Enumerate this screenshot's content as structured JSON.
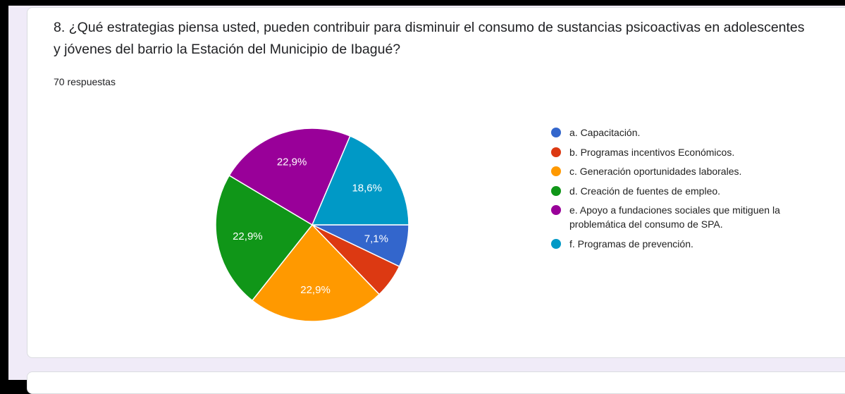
{
  "chart_data": {
    "type": "pie",
    "title": "8. ¿Qué estrategias piensa usted, pueden contribuir para disminuir el consumo de sustancias psicoactivas en adolescentes y jóvenes del barrio la Estación del Municipio de Ibagué?",
    "subtitle": "70 respuestas",
    "categories": [
      "a. Capacitación.",
      "b. Programas incentivos Económicos.",
      "c. Generación oportunidades laborales.",
      "d. Creación de fuentes de empleo.",
      "e. Apoyo a fundaciones sociales que mitiguen la problemática del consumo de SPA.",
      "f. Programas de prevención."
    ],
    "values": [
      7.1,
      5.7,
      22.9,
      22.9,
      22.9,
      18.6
    ],
    "value_labels": [
      "7,1%",
      null,
      "22,9%",
      "22,9%",
      "22,9%",
      "18,6%"
    ],
    "colors": [
      "#3366cc",
      "#dc3912",
      "#ff9900",
      "#109618",
      "#990099",
      "#0099c6"
    ],
    "legend": "right"
  }
}
